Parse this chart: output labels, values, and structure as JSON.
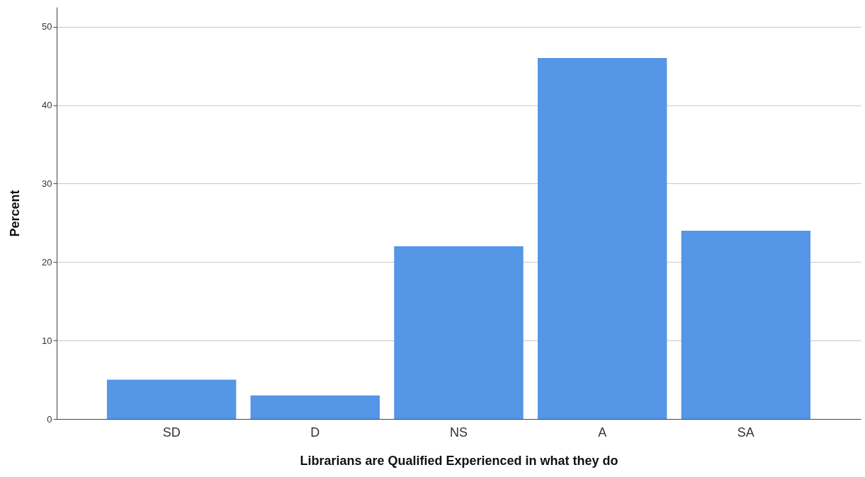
{
  "chart_data": {
    "type": "bar",
    "xlabel": "Librarians are Qualified Experienced in what they do",
    "ylabel": "Percent",
    "categories": [
      "SD",
      "D",
      "NS",
      "A",
      "SA"
    ],
    "values": [
      5,
      3,
      22,
      46,
      24
    ],
    "color": "#5596e6",
    "ylim": [
      0,
      52.5
    ],
    "yticks": [
      0,
      10,
      20,
      30,
      40,
      50
    ],
    "grid": "y"
  }
}
